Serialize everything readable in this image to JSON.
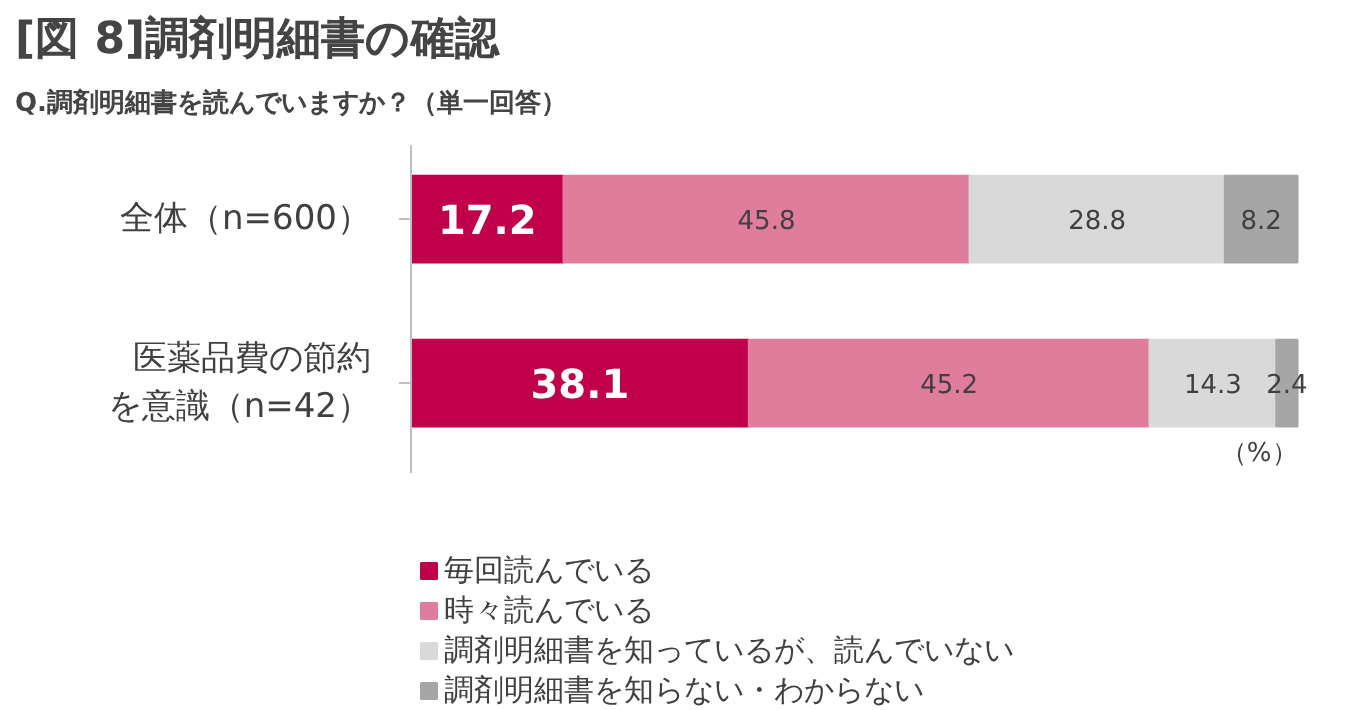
{
  "chart_data": {
    "type": "bar",
    "orientation": "horizontal",
    "stacked": true,
    "title": "[図 8]調剤明細書の確認",
    "subtitle": "Q.調剤明細書を読んでいますか？（単一回答）",
    "categories": [
      "全体（n=600）",
      "医薬品費の節約を意識（n=42）"
    ],
    "series": [
      {
        "name": "毎回読んでいる",
        "color": "#c0004a",
        "values": [
          17.2,
          38.1
        ]
      },
      {
        "name": "時々読んでいる",
        "color": "#e07c9c",
        "values": [
          45.8,
          45.2
        ]
      },
      {
        "name": "調剤明細書を知っているが、読んでいない",
        "color": "#d9d9d9",
        "values": [
          28.8,
          14.3
        ]
      },
      {
        "name": "調剤明細書を知らない・わからない",
        "color": "#a6a6a6",
        "values": [
          8.2,
          2.4
        ]
      }
    ],
    "data_labels": true,
    "legend": "bottom",
    "grid": false,
    "annotations": [
      "（%）"
    ]
  }
}
